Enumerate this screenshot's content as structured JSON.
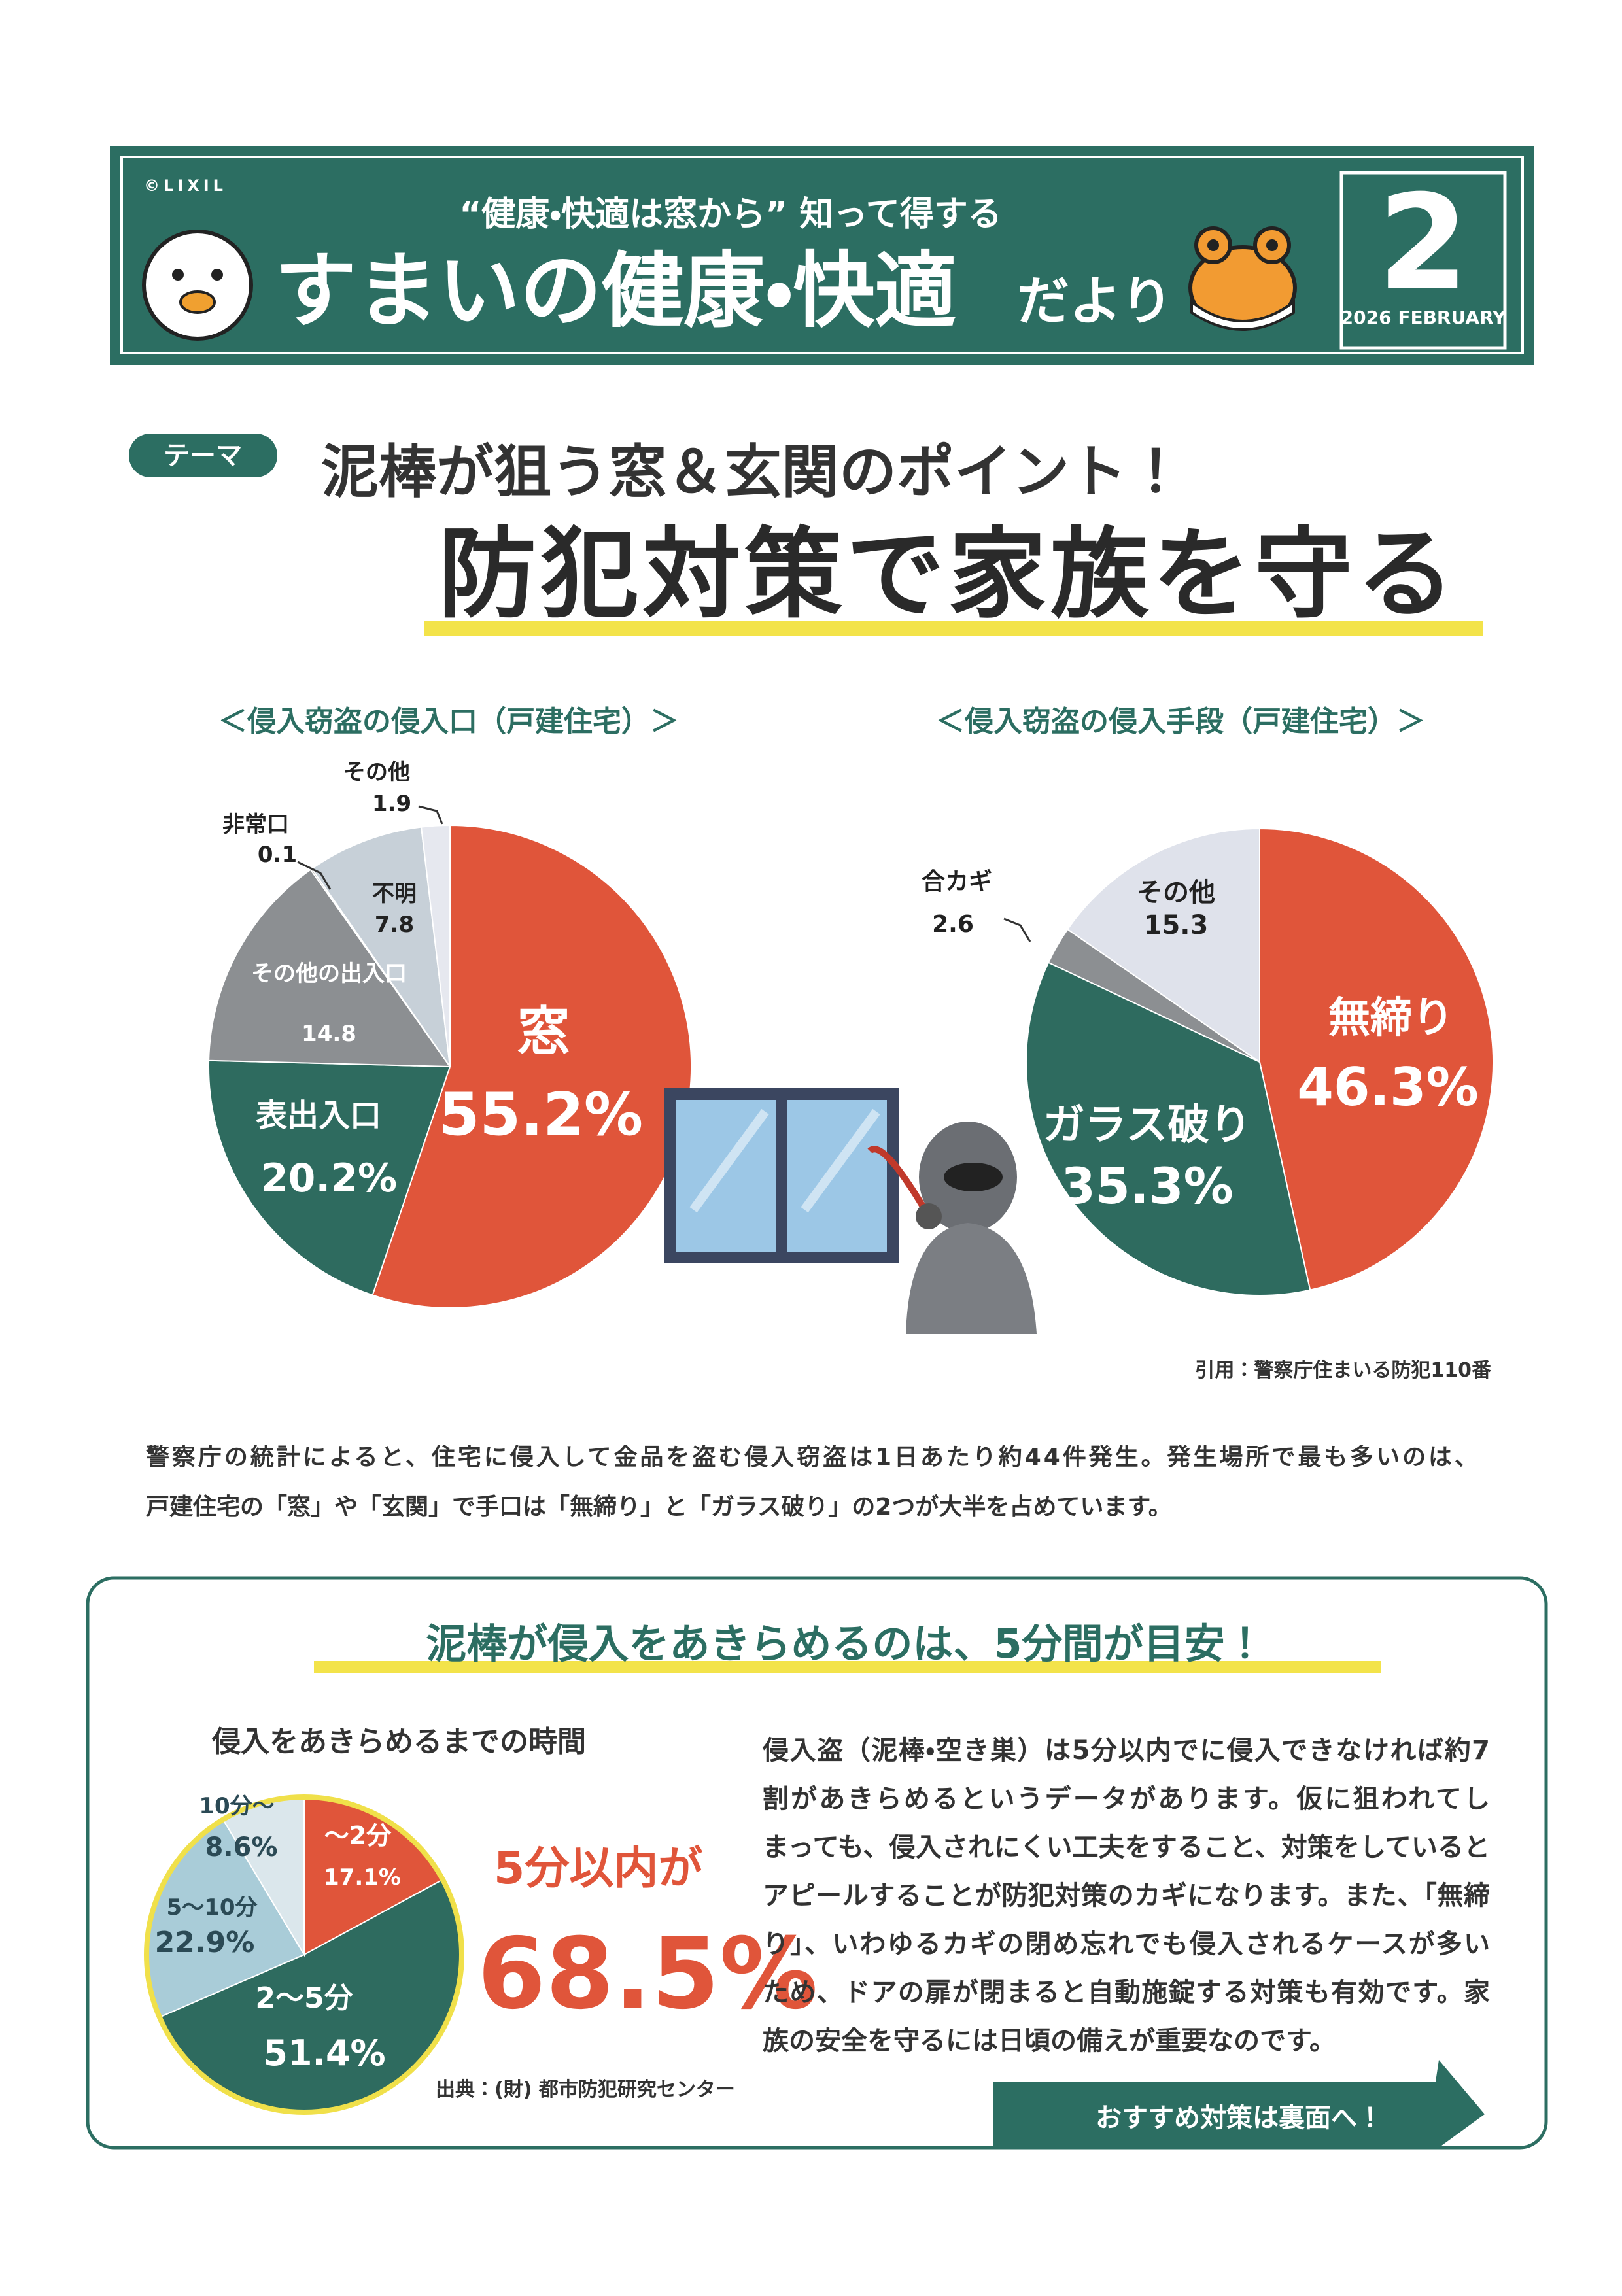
{
  "header": {
    "copyright": "©LIXIL",
    "tagline": "“健康・快適は窓から” 知って得する",
    "title_main": "すまいの健康・快適",
    "title_suffix": "だより",
    "issue_number": "2",
    "issue_date": "2026 FEBRUARY"
  },
  "theme": {
    "badge": "テーマ",
    "subtitle": "泥棒が狙う窓＆玄関のポイント！",
    "title": "防犯対策で家族を守る"
  },
  "chart_data": [
    {
      "type": "pie",
      "title": "＜侵入窃盗の侵入口（戸建住宅）＞",
      "categories": [
        "窓",
        "表出入口",
        "その他の出入口",
        "非常口",
        "不明",
        "その他"
      ],
      "values": [
        55.2,
        20.2,
        14.8,
        0.1,
        7.8,
        1.9
      ],
      "value_labels": [
        "55.2%",
        "20.2%",
        "14.8",
        "0.1",
        "7.8",
        "1.9"
      ],
      "colors": [
        "#e0553a",
        "#2e6b5f",
        "#8c8f92",
        "#3a3a3a",
        "#c7d0d8",
        "#e6e8ef"
      ]
    },
    {
      "type": "pie",
      "title": "＜侵入窃盗の侵入手段（戸建住宅）＞",
      "categories": [
        "無締り",
        "ガラス破り",
        "合カギ",
        "その他"
      ],
      "values": [
        46.3,
        35.3,
        2.6,
        15.3
      ],
      "value_labels": [
        "46.3%",
        "35.3%",
        "2.6",
        "15.3"
      ],
      "colors": [
        "#e0553a",
        "#2e6b5f",
        "#8c8f92",
        "#dfe2eb"
      ]
    },
    {
      "type": "pie",
      "title": "侵入をあきらめるまでの時間",
      "categories": [
        "～2分",
        "2～5分",
        "5～10分",
        "10分～"
      ],
      "values": [
        17.1,
        51.4,
        22.9,
        8.6
      ],
      "value_labels": [
        "17.1%",
        "51.4%",
        "22.9%",
        "8.6%"
      ],
      "colors": [
        "#e0553a",
        "#2e6b5f",
        "#a9ccd8",
        "#dbe7ec"
      ]
    }
  ],
  "source_note": "引用：警察庁住まいる防犯110番",
  "body_text": [
    "警察庁の統計によると、住宅に侵入して金品を盗む侵入窃盗は1日あたり約44件発生。発生場所で最も多いのは、",
    "戸建住宅の「窓」や「玄関」で手口は「無締り」と「ガラス破り」の2つが大半を占めています。"
  ],
  "box": {
    "heading": "泥棒が侵入をあきらめるのは、5分間が目安！",
    "callout_line1": "5分以内が",
    "callout_value": "68.5%",
    "chart_source": "出典：(財) 都市防犯研究センター",
    "paragraph": [
      "侵入盗（泥棒・空き巣）は5分以内でに侵入できなければ約7",
      "割があきらめるというデータがあります。仮に狙われてし",
      "まっても、侵入されにくい工夫をすること、対策をしていると",
      "アピールすることが防犯対策のカギになります。また、「無締",
      "り」、いわゆるカギの閉め忘れでも侵入されるケースが多い",
      "ため、ドアの扉が閉まると自動施錠する対策も有効です。家",
      "族の安全を守るには日頃の備えが重要なのです。"
    ],
    "footer_button": "おすすめ対策は裏面へ！"
  }
}
